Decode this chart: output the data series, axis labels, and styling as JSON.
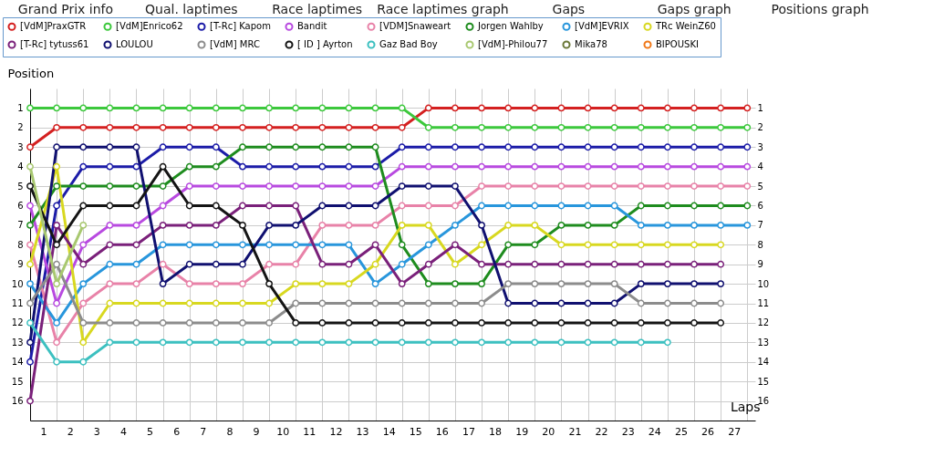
{
  "chart_data": {
    "type": "line",
    "xlabel": "Laps",
    "ylabel": "Position",
    "annotations": [
      "Grand Prix info",
      "Qual. laptimes",
      "Race laptimes",
      "Race laptimes graph",
      "Gaps",
      "Gaps graph",
      "Positions graph"
    ],
    "x": [
      0,
      1,
      2,
      3,
      4,
      5,
      6,
      7,
      8,
      9,
      10,
      11,
      12,
      13,
      14,
      15,
      16,
      17,
      18,
      19,
      20,
      21,
      22,
      23,
      24,
      25,
      26,
      27
    ],
    "xlim": [
      0,
      27.3
    ],
    "xticks": [
      {
        "value": 0.5,
        "label": "1"
      },
      {
        "value": 1.5,
        "label": "2"
      },
      {
        "value": 2.5,
        "label": "3"
      },
      {
        "value": 3.5,
        "label": "4"
      },
      {
        "value": 4.5,
        "label": "5"
      },
      {
        "value": 5.5,
        "label": "6"
      },
      {
        "value": 6.5,
        "label": "7"
      },
      {
        "value": 7.5,
        "label": "8"
      },
      {
        "value": 8.5,
        "label": "9"
      },
      {
        "value": 9.5,
        "label": "10"
      },
      {
        "value": 10.5,
        "label": "11"
      },
      {
        "value": 11.5,
        "label": "12"
      },
      {
        "value": 12.5,
        "label": "13"
      },
      {
        "value": 13.5,
        "label": "14"
      },
      {
        "value": 14.5,
        "label": "15"
      },
      {
        "value": 15.5,
        "label": "16"
      },
      {
        "value": 16.5,
        "label": "17"
      },
      {
        "value": 17.5,
        "label": "18"
      },
      {
        "value": 18.5,
        "label": "19"
      },
      {
        "value": 19.5,
        "label": "20"
      },
      {
        "value": 20.5,
        "label": "21"
      },
      {
        "value": 21.5,
        "label": "22"
      },
      {
        "value": 22.5,
        "label": "23"
      },
      {
        "value": 23.5,
        "label": "24"
      },
      {
        "value": 24.5,
        "label": "25"
      },
      {
        "value": 25.5,
        "label": "26"
      },
      {
        "value": 26.5,
        "label": "27"
      }
    ],
    "ylim": [
      17,
      0
    ],
    "yticks": [
      1,
      2,
      3,
      4,
      5,
      6,
      7,
      8,
      9,
      10,
      11,
      12,
      13,
      14,
      15,
      16
    ],
    "y2lim": [
      17,
      0
    ],
    "y2ticks": [
      1,
      2,
      3,
      4,
      5,
      6,
      7,
      8,
      9,
      10,
      11,
      12,
      13,
      14,
      15,
      16
    ],
    "grid": true,
    "legend": "top",
    "marker": "circle",
    "line_style": "solid",
    "series": [
      {
        "name": "[VdM]PraxGTR",
        "color": "#d42020",
        "values": [
          3,
          2,
          2,
          2,
          2,
          2,
          2,
          2,
          2,
          2,
          2,
          2,
          2,
          2,
          2,
          1,
          1,
          1,
          1,
          1,
          1,
          1,
          1,
          1,
          1,
          1,
          1,
          1
        ]
      },
      {
        "name": "[VdM]Enrico62",
        "color": "#3cc83c",
        "values": [
          1,
          1,
          1,
          1,
          1,
          1,
          1,
          1,
          1,
          1,
          1,
          1,
          1,
          1,
          1,
          2,
          2,
          2,
          2,
          2,
          2,
          2,
          2,
          2,
          2,
          2,
          2,
          2
        ]
      },
      {
        "name": "[T-Rc] Kapom",
        "color": "#1c1ca8",
        "values": [
          14,
          6,
          4,
          4,
          4,
          3,
          3,
          3,
          4,
          4,
          4,
          4,
          4,
          4,
          3,
          3,
          3,
          3,
          3,
          3,
          3,
          3,
          3,
          3,
          3,
          3,
          3,
          3
        ]
      },
      {
        "name": "Bandit",
        "color": "#b84ae0",
        "values": [
          6,
          11,
          8,
          7,
          7,
          6,
          5,
          5,
          5,
          5,
          5,
          5,
          5,
          5,
          4,
          4,
          4,
          4,
          4,
          4,
          4,
          4,
          4,
          4,
          4,
          4,
          4,
          4
        ]
      },
      {
        "name": "[VDM]Snaweart",
        "color": "#e882a8",
        "values": [
          8,
          13,
          11,
          10,
          10,
          9,
          10,
          10,
          10,
          9,
          9,
          7,
          7,
          7,
          6,
          6,
          6,
          5,
          5,
          5,
          5,
          5,
          5,
          5,
          5,
          5,
          5,
          5
        ]
      },
      {
        "name": "Jorgen Wahlby",
        "color": "#1e8c1e",
        "values": [
          7,
          5,
          5,
          5,
          5,
          5,
          4,
          4,
          3,
          3,
          3,
          3,
          3,
          3,
          8,
          10,
          10,
          10,
          8,
          8,
          7,
          7,
          7,
          6,
          6,
          6,
          6,
          6
        ]
      },
      {
        "name": "[VdM]EVRIX",
        "color": "#2896dc",
        "values": [
          10,
          12,
          10,
          9,
          9,
          8,
          8,
          8,
          8,
          8,
          8,
          8,
          8,
          10,
          9,
          8,
          7,
          6,
          6,
          6,
          6,
          6,
          6,
          7,
          7,
          7,
          7,
          7
        ]
      },
      {
        "name": "TRc WeinZ60",
        "color": "#d8d820",
        "values": [
          9,
          4,
          13,
          11,
          11,
          11,
          11,
          11,
          11,
          11,
          10,
          10,
          10,
          9,
          7,
          7,
          9,
          8,
          7,
          7,
          8,
          8,
          8,
          8,
          8,
          8,
          8,
          null
        ]
      },
      {
        "name": "[T-Rc] tytuss61",
        "color": "#7a207a",
        "values": [
          16,
          7,
          9,
          8,
          8,
          7,
          7,
          7,
          6,
          6,
          6,
          9,
          9,
          8,
          10,
          9,
          8,
          9,
          9,
          9,
          9,
          9,
          9,
          9,
          9,
          9,
          9,
          null
        ]
      },
      {
        "name": "LOULOU",
        "color": "#101070",
        "values": [
          13,
          3,
          3,
          3,
          3,
          10,
          9,
          9,
          9,
          7,
          7,
          6,
          6,
          6,
          5,
          5,
          5,
          7,
          11,
          11,
          11,
          11,
          11,
          10,
          10,
          10,
          10,
          null
        ]
      },
      {
        "name": "[VdM] MRC",
        "color": "#8c8c8c",
        "values": [
          11,
          9,
          12,
          12,
          12,
          12,
          12,
          12,
          12,
          12,
          11,
          11,
          11,
          11,
          11,
          11,
          11,
          11,
          10,
          10,
          10,
          10,
          10,
          11,
          11,
          11,
          11,
          null
        ]
      },
      {
        "name": "[ ID ] Ayrton",
        "color": "#141414",
        "values": [
          5,
          8,
          6,
          6,
          6,
          4,
          6,
          6,
          7,
          10,
          12,
          12,
          12,
          12,
          12,
          12,
          12,
          12,
          12,
          12,
          12,
          12,
          12,
          12,
          12,
          12,
          12,
          null
        ]
      },
      {
        "name": "Gaz Bad Boy",
        "color": "#3cc0c0",
        "values": [
          12,
          14,
          14,
          13,
          13,
          13,
          13,
          13,
          13,
          13,
          13,
          13,
          13,
          13,
          13,
          13,
          13,
          13,
          13,
          13,
          13,
          13,
          13,
          13,
          13,
          null,
          null,
          null
        ]
      },
      {
        "name": "[VdM]-Philou77",
        "color": "#a8c870",
        "values": [
          4,
          10,
          7,
          null,
          null,
          null,
          null,
          null,
          null,
          null,
          null,
          null,
          null,
          null,
          null,
          null,
          null,
          null,
          null,
          null,
          null,
          null,
          null,
          null,
          null,
          null,
          null,
          null
        ]
      },
      {
        "name": "Mika78",
        "color": "#6a7838",
        "values": [
          null,
          null,
          null,
          null,
          null,
          null,
          null,
          null,
          null,
          null,
          null,
          null,
          null,
          null,
          null,
          null,
          null,
          null,
          null,
          null,
          null,
          null,
          null,
          null,
          null,
          null,
          null,
          null
        ]
      },
      {
        "name": "BIPOUSKI",
        "color": "#f07818",
        "values": [
          null,
          null,
          null,
          null,
          null,
          null,
          null,
          null,
          null,
          null,
          null,
          null,
          null,
          null,
          null,
          null,
          null,
          null,
          null,
          null,
          null,
          null,
          null,
          null,
          null,
          null,
          null,
          null
        ]
      }
    ]
  }
}
